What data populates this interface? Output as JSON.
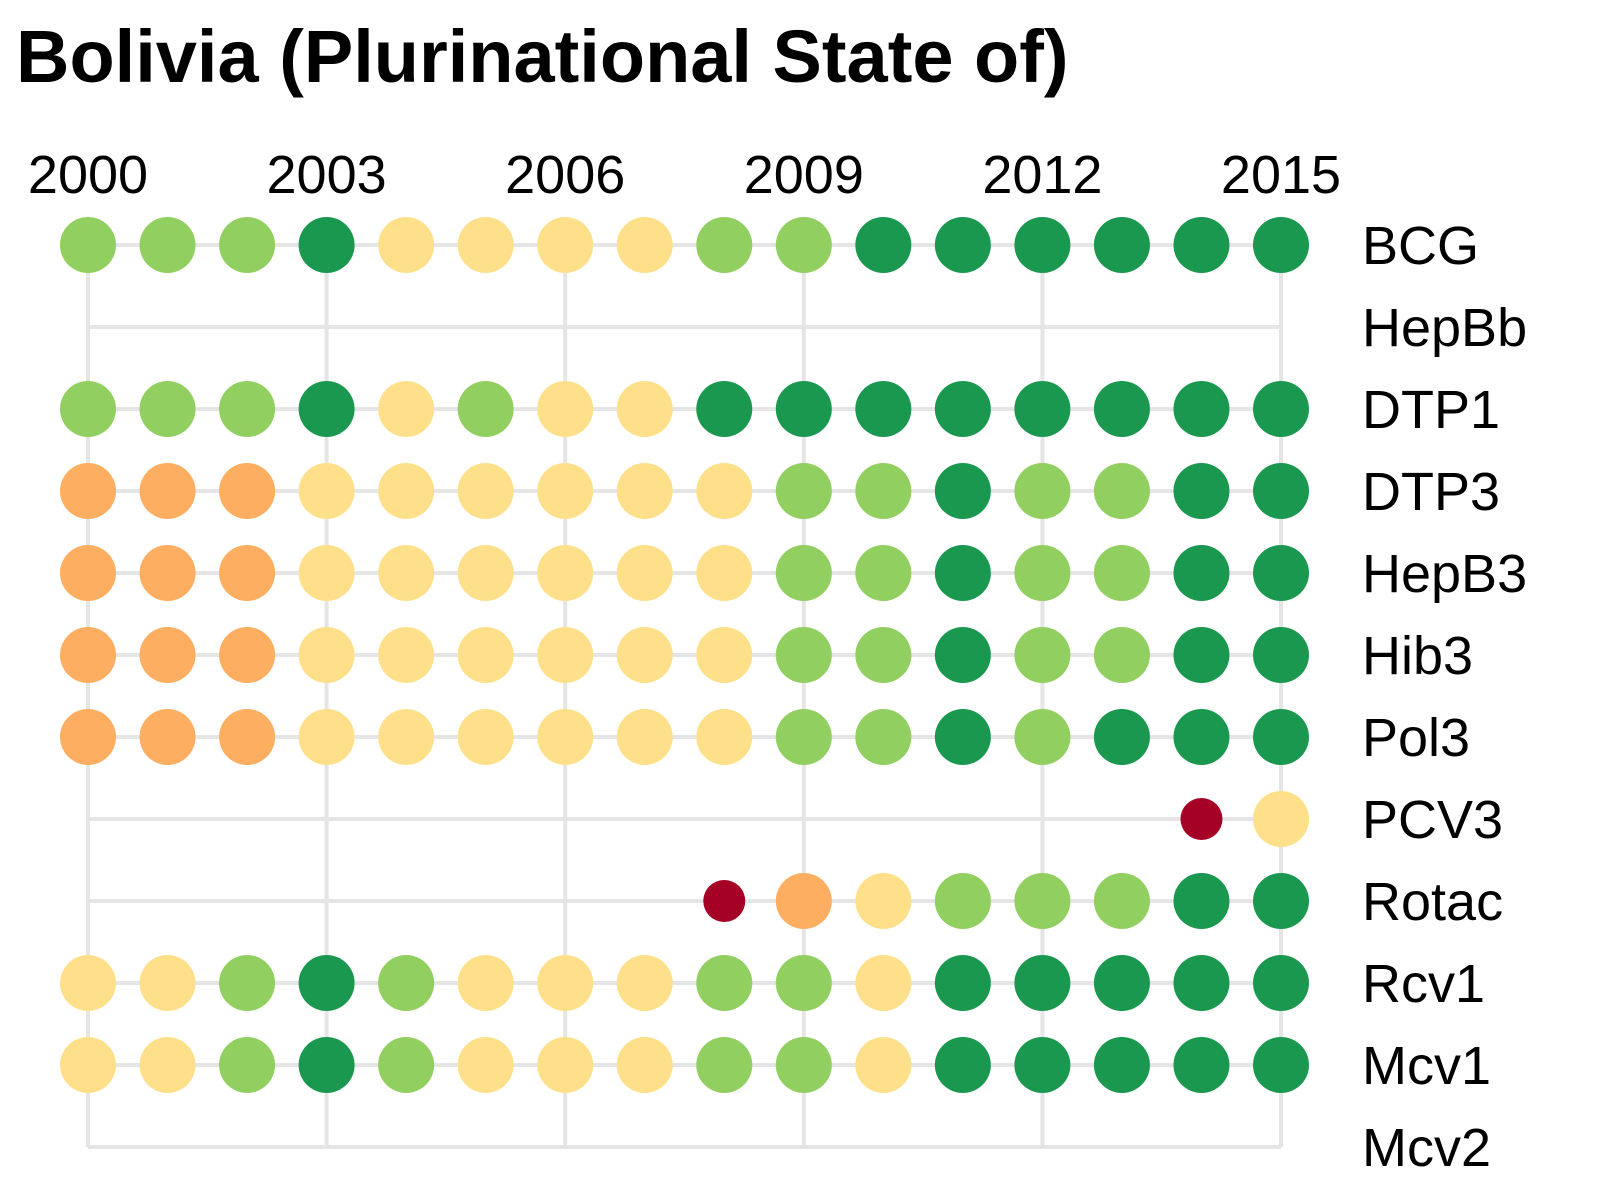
{
  "chart_data": {
    "type": "scatter",
    "title": "Bolivia (Plurinational State of)",
    "x": [
      2000,
      2001,
      2002,
      2003,
      2004,
      2005,
      2006,
      2007,
      2008,
      2009,
      2010,
      2011,
      2012,
      2013,
      2014,
      2015
    ],
    "x_tick_labels": [
      "2000",
      "2003",
      "2006",
      "2009",
      "2012",
      "2015"
    ],
    "x_ticks": [
      2000,
      2003,
      2006,
      2009,
      2012,
      2015
    ],
    "xlim": [
      2000,
      2015
    ],
    "grid": true,
    "legend": "none",
    "category_colors": {
      "very_low": "#a50026",
      "low": "#fdae61",
      "mid": "#fee08b",
      "high": "#91cf60",
      "very_high": "#1a9850"
    },
    "rows": [
      {
        "label": "BCG",
        "values": [
          "high",
          "high",
          "high",
          "very_high",
          "mid",
          "mid",
          "mid",
          "mid",
          "high",
          "high",
          "very_high",
          "very_high",
          "very_high",
          "very_high",
          "very_high",
          "very_high"
        ]
      },
      {
        "label": "HepBb",
        "values": [
          null,
          null,
          null,
          null,
          null,
          null,
          null,
          null,
          null,
          null,
          null,
          null,
          null,
          null,
          null,
          null
        ]
      },
      {
        "label": "DTP1",
        "values": [
          "high",
          "high",
          "high",
          "very_high",
          "mid",
          "high",
          "mid",
          "mid",
          "very_high",
          "very_high",
          "very_high",
          "very_high",
          "very_high",
          "very_high",
          "very_high",
          "very_high"
        ]
      },
      {
        "label": "DTP3",
        "values": [
          "low",
          "low",
          "low",
          "mid",
          "mid",
          "mid",
          "mid",
          "mid",
          "mid",
          "high",
          "high",
          "very_high",
          "high",
          "high",
          "very_high",
          "very_high"
        ]
      },
      {
        "label": "HepB3",
        "values": [
          "low",
          "low",
          "low",
          "mid",
          "mid",
          "mid",
          "mid",
          "mid",
          "mid",
          "high",
          "high",
          "very_high",
          "high",
          "high",
          "very_high",
          "very_high"
        ]
      },
      {
        "label": "Hib3",
        "values": [
          "low",
          "low",
          "low",
          "mid",
          "mid",
          "mid",
          "mid",
          "mid",
          "mid",
          "high",
          "high",
          "very_high",
          "high",
          "high",
          "very_high",
          "very_high"
        ]
      },
      {
        "label": "Pol3",
        "values": [
          "low",
          "low",
          "low",
          "mid",
          "mid",
          "mid",
          "mid",
          "mid",
          "mid",
          "high",
          "high",
          "very_high",
          "high",
          "very_high",
          "very_high",
          "very_high"
        ]
      },
      {
        "label": "PCV3",
        "values": [
          null,
          null,
          null,
          null,
          null,
          null,
          null,
          null,
          null,
          null,
          null,
          null,
          null,
          null,
          "very_low",
          "mid"
        ]
      },
      {
        "label": "Rotac",
        "values": [
          null,
          null,
          null,
          null,
          null,
          null,
          null,
          null,
          "very_low",
          "low",
          "mid",
          "high",
          "high",
          "high",
          "very_high",
          "very_high"
        ]
      },
      {
        "label": "Rcv1",
        "values": [
          "mid",
          "mid",
          "high",
          "very_high",
          "high",
          "mid",
          "mid",
          "mid",
          "high",
          "high",
          "mid",
          "very_high",
          "very_high",
          "very_high",
          "very_high",
          "very_high"
        ]
      },
      {
        "label": "Mcv1",
        "values": [
          "mid",
          "mid",
          "high",
          "very_high",
          "high",
          "mid",
          "mid",
          "mid",
          "high",
          "high",
          "mid",
          "very_high",
          "very_high",
          "very_high",
          "very_high",
          "very_high"
        ]
      },
      {
        "label": "Mcv2",
        "values": [
          null,
          null,
          null,
          null,
          null,
          null,
          null,
          null,
          null,
          null,
          null,
          null,
          null,
          null,
          null,
          null
        ]
      }
    ],
    "small_points": [
      {
        "row": "PCV3",
        "x": 2014
      },
      {
        "row": "Rotac",
        "x": 2008
      }
    ]
  }
}
